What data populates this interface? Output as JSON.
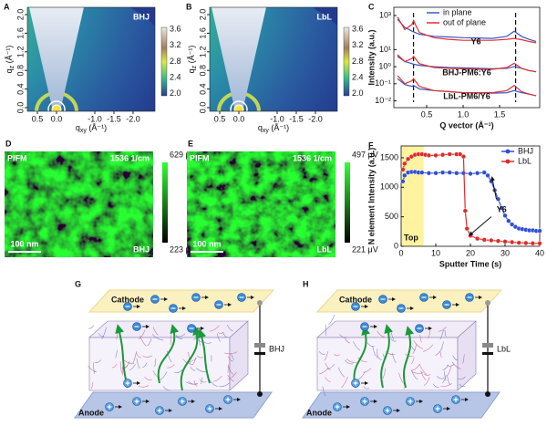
{
  "panels": [
    {
      "label": "A",
      "kind": "giwaxs",
      "tag": "BHJ",
      "x_label": {
        "q": "q",
        "sub": "xy",
        "unit": " (Å⁻¹)"
      },
      "y_label": {
        "q": "q",
        "sub": "z",
        "unit": " (Å⁻¹)"
      },
      "xticks": [
        "0.5",
        "0.0",
        "-1.0",
        "-1.5",
        "-2.0"
      ],
      "yticks": [
        "0.0",
        "0.4",
        "0.8",
        "1.2",
        "1.6",
        "2.0"
      ],
      "colorbar": [
        "3.6",
        "3.2",
        "2.8",
        "2.4",
        "2.0"
      ]
    },
    {
      "label": "B",
      "kind": "giwaxs",
      "tag": "LbL",
      "x_label": {
        "q": "q",
        "sub": "xy",
        "unit": " (Å⁻¹)"
      },
      "y_label": {
        "q": "q",
        "sub": "z",
        "unit": " (Å⁻¹)"
      },
      "xticks": [
        "0.5",
        "0.0",
        "-1.0",
        "-1.5",
        "-2.0"
      ],
      "yticks": [
        "0.0",
        "0.4",
        "0.8",
        "1.2",
        "1.6",
        "2.0"
      ],
      "colorbar": [
        "3.6",
        "3.2",
        "2.8",
        "2.4",
        "2.0"
      ]
    },
    {
      "label": "D",
      "kind": "pifm",
      "mode": "PIFM",
      "wavenumber": "1536 1/cm",
      "scale_bar": "100 nm",
      "tag": "BHJ",
      "colorbar": [
        "629 μV",
        "223 μV"
      ]
    },
    {
      "label": "E",
      "kind": "pifm",
      "mode": "PIFM",
      "wavenumber": "1536 1/cm",
      "scale_bar": "100 nm",
      "tag": "LbL",
      "colorbar": [
        "497 μV",
        "221 μV"
      ]
    },
    {
      "label": "G",
      "kind": "device",
      "top": "Cathode",
      "bottom": "Anode",
      "tag": "BHJ"
    },
    {
      "label": "H",
      "kind": "device",
      "top": "Cathode",
      "bottom": "Anode",
      "tag": "LbL"
    }
  ],
  "chart_data": [
    {
      "type": "line",
      "label": "C",
      "x_label": "Q vector (Å⁻¹)",
      "y_label": "Intensity (a.u.)",
      "log_y": true,
      "x": [
        0.1,
        0.2,
        0.3,
        0.32,
        0.4,
        0.6,
        0.8,
        1.0,
        1.2,
        1.4,
        1.6,
        1.7,
        1.8,
        1.9,
        2.0
      ],
      "xlim": [
        0.05,
        2.05
      ],
      "xticks": [
        0.5,
        {
          "value": 1,
          "label": "1.0"
        },
        1.5
      ],
      "ylim": [
        0.004,
        3000
      ],
      "yticks": [
        {
          "value": 1000,
          "label": "10³"
        },
        {
          "value": 10,
          "label": "10¹"
        },
        {
          "value": 1,
          "label": "10⁰"
        },
        {
          "value": 0.1,
          "label": "10⁻¹"
        },
        {
          "value": 0.01,
          "label": "10⁻²"
        }
      ],
      "reference_lines": [
        0.32,
        1.72
      ],
      "annotations": [
        "Y6",
        "BHJ-PM6:Y6",
        "LbL-PM6/Y6"
      ],
      "series": [
        {
          "name": "in plane",
          "color": "#3b55c8",
          "values": [
            600,
            200,
            120,
            110,
            80,
            60,
            55,
            50,
            48,
            45,
            60,
            120,
            60,
            40,
            30
          ]
        },
        {
          "name": "out of plane",
          "color": "#e03030",
          "values": [
            800,
            150,
            300,
            500,
            100,
            50,
            40,
            35,
            35,
            35,
            40,
            45,
            38,
            30,
            25
          ]
        },
        {
          "color": "#3b55c8",
          "values": [
            4,
            2,
            1.5,
            1.4,
            1.2,
            1,
            0.9,
            0.85,
            0.8,
            0.75,
            0.8,
            1.0,
            0.8,
            0.6,
            0.5
          ]
        },
        {
          "color": "#e03030",
          "values": [
            5,
            2,
            3,
            4,
            1.5,
            0.9,
            0.8,
            0.75,
            0.7,
            0.7,
            0.9,
            1.6,
            0.8,
            0.6,
            0.5
          ]
        },
        {
          "color": "#3b55c8",
          "values": [
            0.2,
            0.09,
            0.07,
            0.08,
            0.05,
            0.04,
            0.035,
            0.03,
            0.03,
            0.028,
            0.03,
            0.04,
            0.03,
            0.025,
            0.02
          ]
        },
        {
          "color": "#e03030",
          "values": [
            0.3,
            0.1,
            0.15,
            0.2,
            0.07,
            0.04,
            0.035,
            0.03,
            0.03,
            0.03,
            0.04,
            0.08,
            0.035,
            0.025,
            0.02
          ]
        }
      ]
    },
    {
      "type": "line",
      "label": "F",
      "x_label": "Sputter Time (s)",
      "y_label": "N element Intensity (a.u.)",
      "markers": true,
      "xlim": [
        0,
        40
      ],
      "xticks": [
        0,
        10,
        20,
        30,
        40
      ],
      "ylim": [
        0,
        1700
      ],
      "yticks": [
        0,
        500,
        1000,
        1500
      ],
      "highlight": {
        "label": "Top",
        "range": [
          0,
          6.5
        ]
      },
      "annotations": [
        "Y6"
      ],
      "series": [
        {
          "name": "BHJ",
          "color": "#2f4fd6",
          "x": [
            0.5,
            1,
            2,
            3,
            4,
            5,
            6,
            8,
            10,
            12,
            14,
            16,
            18,
            20,
            22,
            24,
            25,
            26,
            27,
            28,
            29,
            30,
            31,
            32,
            33,
            34,
            35,
            36,
            37,
            38,
            39,
            40
          ],
          "values": [
            1100,
            1200,
            1250,
            1260,
            1260,
            1250,
            1250,
            1240,
            1240,
            1250,
            1250,
            1240,
            1240,
            1230,
            1240,
            1250,
            1200,
            1100,
            950,
            800,
            650,
            520,
            430,
            370,
            330,
            300,
            290,
            280,
            270,
            270,
            260,
            260
          ]
        },
        {
          "name": "LbL",
          "color": "#e02a2a",
          "x": [
            0.5,
            1,
            2,
            3,
            4,
            5,
            6,
            7,
            8,
            10,
            12,
            14,
            16,
            17,
            18,
            18.5,
            19,
            20,
            22,
            24,
            26,
            28,
            30,
            32,
            34,
            36,
            38,
            40
          ],
          "values": [
            1300,
            1400,
            1480,
            1520,
            1550,
            1560,
            1560,
            1550,
            1540,
            1540,
            1550,
            1560,
            1560,
            1560,
            1520,
            600,
            300,
            180,
            130,
            110,
            100,
            90,
            80,
            70,
            60,
            55,
            50,
            50
          ]
        }
      ]
    }
  ]
}
